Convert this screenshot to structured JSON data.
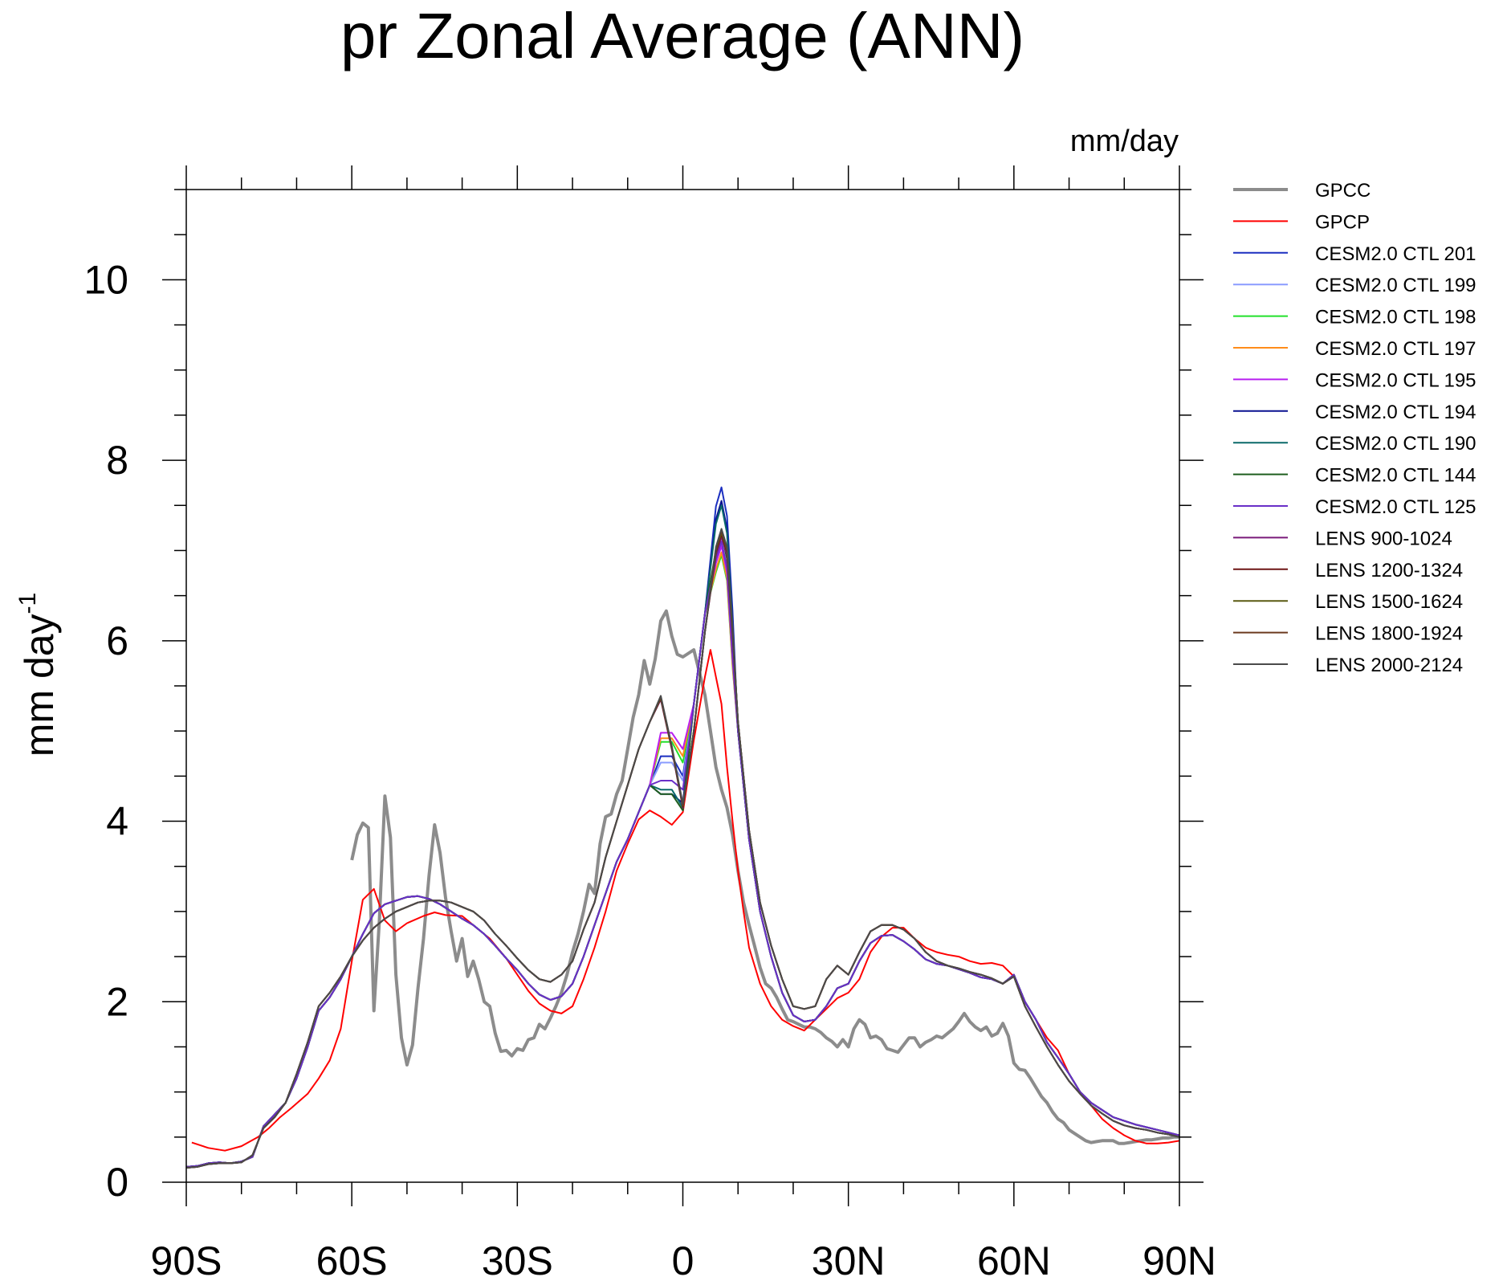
{
  "chart_data": {
    "type": "line",
    "title": "pr Zonal Average (ANN)",
    "units_label": "mm/day",
    "ylabel_main": "mm day",
    "ylabel_sup": "-1",
    "xlabel": "",
    "xlim": [
      -90,
      90
    ],
    "ylim": [
      0,
      11
    ],
    "x_ticks": [
      {
        "value": -90,
        "label": "90S"
      },
      {
        "value": -60,
        "label": "60S"
      },
      {
        "value": -30,
        "label": "30S"
      },
      {
        "value": 0,
        "label": "0"
      },
      {
        "value": 30,
        "label": "30N"
      },
      {
        "value": 60,
        "label": "60N"
      },
      {
        "value": 90,
        "label": "90N"
      }
    ],
    "y_ticks": [
      {
        "value": 0,
        "label": "0"
      },
      {
        "value": 2,
        "label": "2"
      },
      {
        "value": 4,
        "label": "4"
      },
      {
        "value": 6,
        "label": "6"
      },
      {
        "value": 8,
        "label": "8"
      },
      {
        "value": 10,
        "label": "10"
      }
    ],
    "legend_position": "right",
    "series": [
      {
        "name": "GPCC",
        "color": "#8c8c8c",
        "width": 4,
        "x": [
          -60,
          -59,
          -58,
          -57,
          -56,
          -55,
          -54,
          -53,
          -52,
          -51,
          -50,
          -49,
          -48,
          -47,
          -46,
          -45,
          -44,
          -43,
          -42,
          -41,
          -40,
          -39,
          -38,
          -37,
          -36,
          -35,
          -34,
          -33,
          -32,
          -31,
          -30,
          -29,
          -28,
          -27,
          -26,
          -25,
          -24,
          -23,
          -22,
          -21,
          -20,
          -19,
          -18,
          -17,
          -16,
          -15,
          -14,
          -13,
          -12,
          -11,
          -10,
          -9,
          -8,
          -7,
          -6,
          -5,
          -4,
          -3,
          -2,
          -1,
          0,
          1,
          2,
          3,
          4,
          5,
          6,
          7,
          8,
          9,
          10,
          11,
          12,
          13,
          14,
          15,
          16,
          17,
          18,
          19,
          20,
          21,
          22,
          23,
          24,
          25,
          26,
          27,
          28,
          29,
          30,
          31,
          32,
          33,
          34,
          35,
          36,
          37,
          38,
          39,
          40,
          41,
          42,
          43,
          44,
          45,
          46,
          47,
          48,
          49,
          50,
          51,
          52,
          53,
          54,
          55,
          56,
          57,
          58,
          59,
          60,
          61,
          62,
          63,
          64,
          65,
          66,
          67,
          68,
          69,
          70,
          71,
          72,
          73,
          74,
          75,
          76,
          77,
          78,
          79,
          80,
          81,
          82,
          83,
          84,
          85,
          86,
          87,
          88,
          89,
          90
        ],
        "y": [
          3.57,
          3.85,
          3.98,
          3.93,
          1.9,
          2.9,
          4.28,
          3.82,
          2.3,
          1.6,
          1.3,
          1.52,
          2.15,
          2.7,
          3.4,
          3.96,
          3.65,
          3.15,
          2.78,
          2.45,
          2.7,
          2.28,
          2.45,
          2.25,
          2.0,
          1.95,
          1.65,
          1.45,
          1.46,
          1.4,
          1.48,
          1.46,
          1.58,
          1.6,
          1.75,
          1.7,
          1.82,
          1.95,
          2.1,
          2.3,
          2.55,
          2.75,
          3.0,
          3.3,
          3.2,
          3.75,
          4.05,
          4.08,
          4.3,
          4.45,
          4.8,
          5.15,
          5.4,
          5.78,
          5.52,
          5.8,
          6.22,
          6.33,
          6.05,
          5.85,
          5.82,
          5.86,
          5.9,
          5.65,
          5.4,
          5.0,
          4.6,
          4.35,
          4.15,
          3.85,
          3.45,
          3.1,
          2.85,
          2.62,
          2.38,
          2.2,
          2.15,
          2.05,
          1.92,
          1.8,
          1.78,
          1.75,
          1.72,
          1.72,
          1.7,
          1.66,
          1.6,
          1.56,
          1.5,
          1.58,
          1.5,
          1.7,
          1.8,
          1.75,
          1.6,
          1.62,
          1.58,
          1.48,
          1.46,
          1.44,
          1.52,
          1.6,
          1.6,
          1.5,
          1.55,
          1.58,
          1.62,
          1.6,
          1.65,
          1.7,
          1.78,
          1.87,
          1.78,
          1.72,
          1.68,
          1.72,
          1.62,
          1.65,
          1.76,
          1.62,
          1.32,
          1.25,
          1.24,
          1.15,
          1.05,
          0.95,
          0.88,
          0.78,
          0.7,
          0.66,
          0.58,
          0.54,
          0.5,
          0.46,
          0.44,
          0.45,
          0.46,
          0.46,
          0.46,
          0.43,
          0.43,
          0.44,
          0.45,
          0.46,
          0.47,
          0.47,
          0.48,
          0.49,
          0.49,
          0.5,
          0.5
        ]
      },
      {
        "name": "GPCP",
        "color": "#ff0000",
        "width": 2,
        "x": [
          -89,
          -86,
          -83,
          -80,
          -77,
          -75,
          -73,
          -71,
          -68,
          -66,
          -64,
          -62,
          -60,
          -58,
          -56,
          -54,
          -52,
          -50,
          -47,
          -45,
          -43,
          -40,
          -37,
          -35,
          -32,
          -30,
          -28,
          -26,
          -24,
          -22,
          -20,
          -18,
          -16,
          -14,
          -12,
          -10,
          -8,
          -6,
          -4,
          -2,
          0,
          2,
          4,
          5,
          6,
          7,
          8,
          9,
          10,
          11,
          12,
          14,
          16,
          18,
          20,
          22,
          24,
          26,
          28,
          30,
          32,
          34,
          36,
          38,
          40,
          42,
          44,
          46,
          48,
          50,
          52,
          54,
          56,
          58,
          60,
          62,
          64,
          66,
          68,
          70,
          72,
          74,
          76,
          78,
          80,
          82,
          84,
          86,
          88,
          90
        ],
        "y": [
          0.44,
          0.38,
          0.35,
          0.4,
          0.5,
          0.6,
          0.72,
          0.82,
          0.98,
          1.15,
          1.35,
          1.7,
          2.45,
          3.13,
          3.25,
          2.9,
          2.78,
          2.87,
          2.95,
          2.99,
          2.96,
          2.95,
          2.8,
          2.7,
          2.48,
          2.3,
          2.12,
          1.98,
          1.9,
          1.87,
          1.95,
          2.25,
          2.6,
          3.0,
          3.45,
          3.75,
          4.02,
          4.12,
          4.05,
          3.96,
          4.1,
          4.9,
          5.6,
          5.9,
          5.6,
          5.3,
          4.6,
          4.0,
          3.45,
          3.0,
          2.6,
          2.2,
          1.95,
          1.8,
          1.73,
          1.68,
          1.8,
          1.92,
          2.04,
          2.1,
          2.25,
          2.55,
          2.72,
          2.82,
          2.82,
          2.7,
          2.6,
          2.55,
          2.52,
          2.5,
          2.45,
          2.42,
          2.43,
          2.4,
          2.28,
          2.0,
          1.8,
          1.6,
          1.46,
          1.2,
          1.0,
          0.85,
          0.7,
          0.6,
          0.52,
          0.46,
          0.43,
          0.43,
          0.44,
          0.46
        ]
      },
      {
        "name": "CESM2.0 CTL 201",
        "color": "#1b2fc0",
        "width": 2,
        "base": "c",
        "peak": 7.7,
        "dip": 4.5,
        "hump": 4.72
      },
      {
        "name": "CESM2.0 CTL 199",
        "color": "#8a9cff",
        "width": 2,
        "base": "c",
        "peak": 7.1,
        "dip": 4.45,
        "hump": 4.65
      },
      {
        "name": "CESM2.0 CTL 198",
        "color": "#22e02a",
        "width": 2,
        "base": "c",
        "peak": 6.95,
        "dip": 4.65,
        "hump": 4.88
      },
      {
        "name": "CESM2.0 CTL 197",
        "color": "#ff8c1a",
        "width": 2,
        "base": "c",
        "peak": 6.98,
        "dip": 4.72,
        "hump": 4.92
      },
      {
        "name": "CESM2.0 CTL 195",
        "color": "#b81ff0",
        "width": 2,
        "base": "c",
        "peak": 7.05,
        "dip": 4.8,
        "hump": 4.98
      },
      {
        "name": "CESM2.0 CTL 194",
        "color": "#0a1290",
        "width": 2,
        "base": "c",
        "peak": 7.55,
        "dip": 4.2,
        "hump": 4.3
      },
      {
        "name": "CESM2.0 CTL 190",
        "color": "#0b6a6a",
        "width": 2,
        "base": "c",
        "peak": 7.5,
        "dip": 4.15,
        "hump": 4.35
      },
      {
        "name": "CESM2.0 CTL 144",
        "color": "#1e5e1e",
        "width": 2,
        "base": "c",
        "peak": 7.2,
        "dip": 4.12,
        "hump": 4.3
      },
      {
        "name": "CESM2.0 CTL 125",
        "color": "#6a2fc8",
        "width": 2,
        "base": "c",
        "peak": 7.1,
        "dip": 4.35,
        "hump": 4.45
      },
      {
        "name": "LENS 900-1024",
        "color": "#7a1a7a",
        "width": 2,
        "base": "l",
        "peak": 7.15,
        "dip": 4.15,
        "hump": 5.35
      },
      {
        "name": "LENS 1200-1324",
        "color": "#6e1515",
        "width": 2,
        "base": "l",
        "peak": 7.18,
        "dip": 4.16,
        "hump": 5.36
      },
      {
        "name": "LENS 1500-1624",
        "color": "#5a5a12",
        "width": 2,
        "base": "l",
        "peak": 7.2,
        "dip": 4.17,
        "hump": 5.37
      },
      {
        "name": "LENS 1800-1924",
        "color": "#6b3a1f",
        "width": 2,
        "base": "l",
        "peak": 7.22,
        "dip": 4.18,
        "hump": 5.38
      },
      {
        "name": "LENS 2000-2124",
        "color": "#4a4a4a",
        "width": 2,
        "base": "l",
        "peak": 7.24,
        "dip": 4.19,
        "hump": 5.39
      }
    ],
    "model_shape": {
      "x": [
        -90,
        -88,
        -86,
        -84,
        -82,
        -80,
        -78,
        -76,
        -74,
        -72,
        -70,
        -68,
        -66,
        -64,
        -62,
        -60,
        -58,
        -56,
        -54,
        -52,
        -50,
        -48,
        -46,
        -44,
        -42,
        -40,
        -38,
        -36,
        -34,
        -32,
        -30,
        -28,
        -26,
        -24,
        -22,
        -20,
        -18,
        -16,
        -14,
        -12,
        -10,
        -8,
        -6,
        -4,
        -2,
        0,
        2,
        4,
        6,
        7,
        8,
        9,
        10,
        12,
        14,
        16,
        18,
        20,
        22,
        24,
        26,
        28,
        30,
        32,
        34,
        36,
        38,
        40,
        42,
        44,
        46,
        48,
        50,
        52,
        54,
        56,
        58,
        60,
        62,
        64,
        66,
        68,
        70,
        72,
        74,
        76,
        78,
        80,
        82,
        84,
        86,
        88,
        90
      ],
      "c": [
        0.17,
        0.18,
        0.21,
        0.22,
        0.21,
        0.23,
        0.28,
        0.62,
        0.75,
        0.88,
        1.15,
        1.5,
        1.9,
        2.05,
        2.25,
        2.5,
        2.75,
        2.98,
        3.08,
        3.12,
        3.16,
        3.17,
        3.14,
        3.08,
        3.0,
        2.92,
        2.85,
        2.75,
        2.62,
        2.48,
        2.35,
        2.2,
        2.08,
        2.02,
        2.06,
        2.2,
        2.5,
        2.85,
        3.2,
        3.55,
        3.8,
        4.1,
        4.4,
        4.6,
        4.6,
        4.75,
        5.3,
        6.3,
        7.1,
        7.3,
        7.0,
        6.0,
        5.0,
        3.8,
        3.0,
        2.5,
        2.1,
        1.85,
        1.78,
        1.8,
        1.95,
        2.15,
        2.2,
        2.45,
        2.65,
        2.73,
        2.74,
        2.67,
        2.58,
        2.47,
        2.42,
        2.4,
        2.36,
        2.32,
        2.27,
        2.25,
        2.2,
        2.3,
        2.0,
        1.8,
        1.55,
        1.38,
        1.2,
        1.0,
        0.88,
        0.8,
        0.72,
        0.68,
        0.64,
        0.61,
        0.58,
        0.55,
        0.52
      ],
      "l": [
        0.16,
        0.17,
        0.2,
        0.21,
        0.21,
        0.22,
        0.3,
        0.6,
        0.72,
        0.88,
        1.2,
        1.55,
        1.95,
        2.1,
        2.28,
        2.5,
        2.68,
        2.82,
        2.92,
        3.0,
        3.05,
        3.1,
        3.12,
        3.12,
        3.1,
        3.05,
        3.0,
        2.9,
        2.75,
        2.62,
        2.48,
        2.35,
        2.25,
        2.22,
        2.3,
        2.45,
        2.8,
        3.1,
        3.6,
        4.0,
        4.4,
        4.8,
        5.1,
        5.3,
        4.75,
        4.3,
        5.0,
        6.1,
        7.0,
        7.2,
        7.0,
        6.1,
        5.1,
        3.9,
        3.1,
        2.62,
        2.25,
        1.95,
        1.92,
        1.95,
        2.25,
        2.4,
        2.3,
        2.55,
        2.78,
        2.85,
        2.85,
        2.8,
        2.7,
        2.55,
        2.45,
        2.4,
        2.37,
        2.33,
        2.3,
        2.26,
        2.2,
        2.28,
        1.95,
        1.72,
        1.5,
        1.3,
        1.12,
        0.98,
        0.85,
        0.76,
        0.68,
        0.63,
        0.6,
        0.58,
        0.55,
        0.53,
        0.5
      ]
    }
  }
}
